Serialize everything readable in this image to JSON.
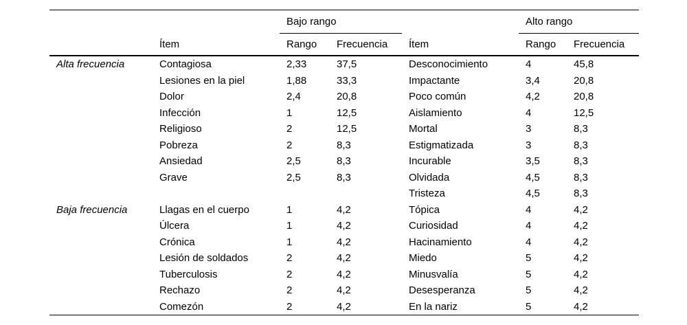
{
  "table": {
    "spanners": {
      "bajo": "Bajo rango",
      "alto": "Alto rango"
    },
    "headers": {
      "item": "Ítem",
      "rango": "Rango",
      "frecuencia": "Frecuencia"
    },
    "groups": [
      {
        "label": "Alta frecuencia",
        "rows": [
          [
            "Contagiosa",
            "2,33",
            "37,5",
            "Desconocimiento",
            "4",
            "45,8"
          ],
          [
            "Lesiones en la piel",
            "1,88",
            "33,3",
            "Impactante",
            "3,4",
            "20,8"
          ],
          [
            "Dolor",
            "2,4",
            "20,8",
            "Poco común",
            "4,2",
            "20,8"
          ],
          [
            "Infección",
            "1",
            "12,5",
            "Aislamiento",
            "4",
            "12,5"
          ],
          [
            "Religioso",
            "2",
            "12,5",
            "Mortal",
            "3",
            "8,3"
          ],
          [
            "Pobreza",
            "2",
            "8,3",
            "Estigmatizada",
            "3",
            "8,3"
          ],
          [
            "Ansiedad",
            "2,5",
            "8,3",
            "Incurable",
            "3,5",
            "8,3"
          ],
          [
            "Grave",
            "2,5",
            "8,3",
            "Olvidada",
            "4,5",
            "8,3"
          ],
          [
            "",
            "",
            "",
            "Tristeza",
            "4,5",
            "8,3"
          ]
        ]
      },
      {
        "label": "Baja frecuencia",
        "rows": [
          [
            "Llagas en el cuerpo",
            "1",
            "4,2",
            "Tópica",
            "4",
            "4,2"
          ],
          [
            "Úlcera",
            "1",
            "4,2",
            "Curiosidad",
            "4",
            "4,2"
          ],
          [
            "Crónica",
            "1",
            "4,2",
            "Hacinamiento",
            "4",
            "4,2"
          ],
          [
            "Lesión de soldados",
            "2",
            "4,2",
            "Miedo",
            "5",
            "4,2"
          ],
          [
            "Tuberculosis",
            "2",
            "4,2",
            "Minusvalía",
            "5",
            "4,2"
          ],
          [
            "Rechazo",
            "2",
            "4,2",
            "Desesperanza",
            "5",
            "4,2"
          ],
          [
            "Comezón",
            "2",
            "4,2",
            "En la nariz",
            "5",
            "4,2"
          ]
        ]
      }
    ]
  }
}
